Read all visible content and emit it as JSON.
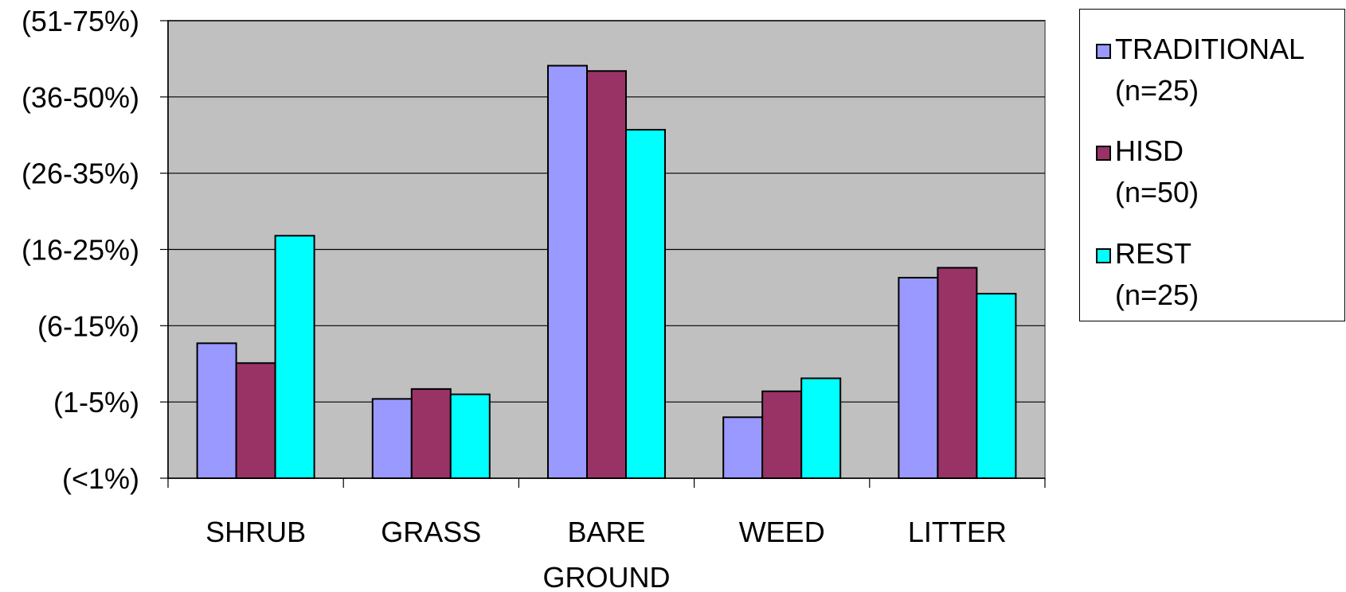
{
  "chart_data": {
    "type": "bar",
    "y_tick_labels": [
      "(<1%)",
      "(1-5%)",
      "(6-15%)",
      "(16-25%)",
      "(26-35%)",
      "(36-50%)",
      "(51-75%)"
    ],
    "ylim": [
      0,
      6
    ],
    "categories": [
      {
        "lines": [
          "SHRUB"
        ]
      },
      {
        "lines": [
          "GRASS"
        ]
      },
      {
        "lines": [
          "BARE",
          "GROUND"
        ]
      },
      {
        "lines": [
          "WEED"
        ]
      },
      {
        "lines": [
          "LITTER"
        ]
      }
    ],
    "series": [
      {
        "name": "TRADITIONAL",
        "n_label": "(n=25)",
        "color": "#9999FF",
        "values": [
          1.77,
          1.04,
          5.41,
          0.8,
          2.63
        ]
      },
      {
        "name": "HISD",
        "n_label": "(n=50)",
        "color": "#993366",
        "values": [
          1.51,
          1.17,
          5.34,
          1.14,
          2.76
        ]
      },
      {
        "name": "REST",
        "n_label": "(n=25)",
        "color": "#00FFFF",
        "values": [
          3.18,
          1.1,
          4.57,
          1.31,
          2.42
        ]
      }
    ],
    "grid": true,
    "plot_background": "#C0C0C0",
    "legend_position": "right"
  }
}
